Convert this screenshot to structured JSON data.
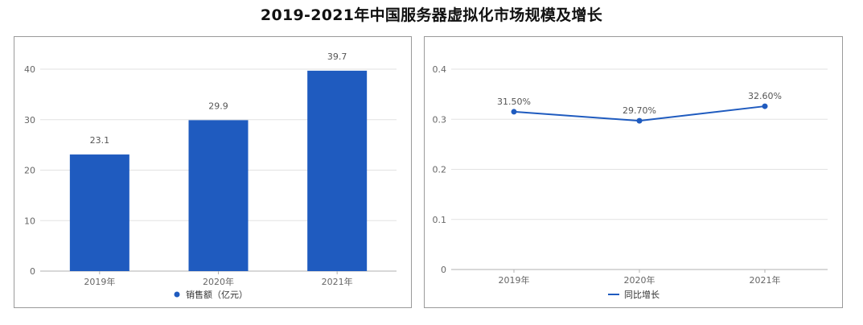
{
  "title": "2019-2021年中国服务器虚拟化市场规模及增长",
  "chart_data": [
    {
      "type": "bar",
      "categories": [
        "2019年",
        "2020年",
        "2021年"
      ],
      "series": [
        {
          "name": "销售额（亿元）",
          "values": [
            23.1,
            29.9,
            39.7
          ]
        }
      ],
      "data_labels": [
        "23.1",
        "29.9",
        "39.7"
      ],
      "ylim": [
        0,
        40
      ],
      "yticks": [
        "0",
        "10",
        "20",
        "30",
        "40"
      ],
      "grid": true,
      "legend": "bottom",
      "color": "#1f5bbf"
    },
    {
      "type": "line",
      "categories": [
        "2019年",
        "2020年",
        "2021年"
      ],
      "series": [
        {
          "name": "同比增长",
          "values": [
            0.315,
            0.297,
            0.326
          ]
        }
      ],
      "data_labels": [
        "31.50%",
        "29.70%",
        "32.60%"
      ],
      "ylim": [
        0,
        0.4
      ],
      "yticks": [
        "0",
        "0.1",
        "0.2",
        "0.3",
        "0.4"
      ],
      "grid": true,
      "legend": "bottom",
      "color": "#1f5bbf"
    }
  ]
}
